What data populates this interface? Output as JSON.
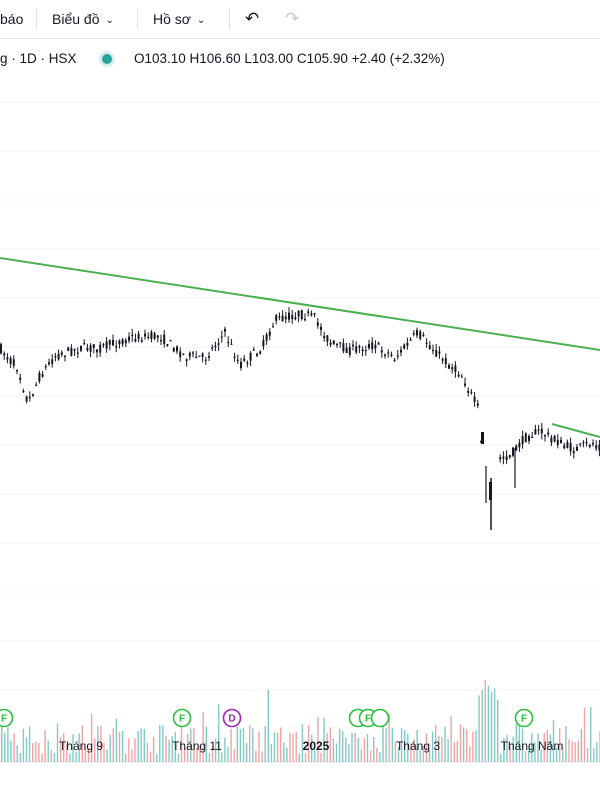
{
  "toolbar": {
    "partial_item": "báo",
    "chart_menu": "Biểu đồ",
    "profile_menu": "Hồ sơ",
    "undo_icon": "undo-icon",
    "redo_icon": "redo-icon"
  },
  "legend": {
    "symbol": "g · 1D · HSX",
    "ohlc": "O103.10 H106.60 L103.00 C105.90 +2.40 (+2.32%)"
  },
  "colors": {
    "trendline": "#4caf50",
    "candle": "#131722",
    "volume_up": "#80cbc4",
    "volume_down": "#f4a3a3",
    "event_f": "#2bbf3f",
    "event_d": "#9c27b0",
    "gridline": "#f0f3fa",
    "status_dot": "#26a69a"
  },
  "x_axis": {
    "labels": [
      "Tháng 9",
      "Tháng 11",
      "2025",
      "Tháng 3",
      "Tháng Năm"
    ],
    "bold": [
      false,
      false,
      true,
      false,
      false
    ]
  },
  "events": [
    {
      "label": "F",
      "kind": "dividend"
    },
    {
      "label": "F",
      "kind": "dividend"
    },
    {
      "label": "D",
      "kind": "dividend"
    },
    {
      "label": "",
      "kind": "dividend"
    },
    {
      "label": "F",
      "kind": "dividend"
    },
    {
      "label": "",
      "kind": "dividend"
    },
    {
      "label": "F",
      "kind": "dividend"
    }
  ],
  "chart_data": {
    "type": "candlestick",
    "trendlines": 2
  }
}
